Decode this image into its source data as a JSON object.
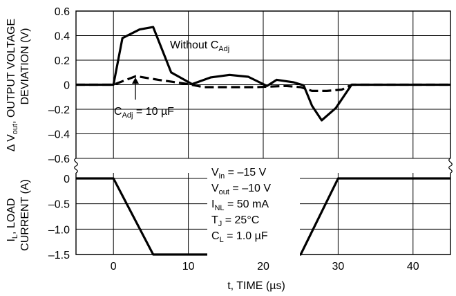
{
  "chart_data": {
    "type": "line",
    "x_axis": {
      "label": "t, TIME (µs)",
      "range": [
        -5,
        45
      ],
      "ticks": [
        0,
        10,
        20,
        30,
        40
      ],
      "tick_labels": [
        "0",
        "10",
        "20",
        "30",
        "40"
      ]
    },
    "top_panel": {
      "ylabel_line1": "Δ V",
      "ylabel_line1_sub": "out",
      "ylabel_line1_rest": ", OUTPUT VOLTAGE",
      "ylabel_line2": "DEVIATION (V)",
      "ylim": [
        -0.6,
        0.6
      ],
      "ticks": [
        0.6,
        0.4,
        0.2,
        0,
        -0.2,
        -0.4,
        -0.6
      ],
      "tick_labels": [
        "0.6",
        "0.4",
        "0.2",
        "0",
        "–0.2",
        "–0.4",
        "–0.6"
      ],
      "series": [
        {
          "name": "Without C_Adj",
          "style": "solid",
          "x": [
            -5,
            0,
            1.2,
            3.5,
            5.3,
            7.7,
            10.5,
            13,
            15.5,
            18,
            20.5,
            21.8,
            24,
            25.4,
            26.5,
            27.8,
            29.7,
            31.8,
            45
          ],
          "y": [
            0,
            0,
            0.38,
            0.45,
            0.47,
            0.1,
            0.005,
            0.06,
            0.08,
            0.065,
            -0.01,
            0.04,
            0.02,
            -0.005,
            -0.17,
            -0.29,
            -0.19,
            0,
            0
          ]
        },
        {
          "name": "C_Adj = 10 µF",
          "style": "dashed",
          "x": [
            -5,
            0,
            3,
            6,
            10,
            12,
            15,
            19,
            23,
            25,
            26.5,
            28.5,
            30.5,
            31.8,
            45
          ],
          "y": [
            0,
            0,
            0.07,
            0.04,
            0.005,
            -0.02,
            -0.02,
            -0.02,
            -0.01,
            -0.02,
            -0.05,
            -0.05,
            -0.04,
            0,
            0
          ]
        }
      ],
      "annotations": {
        "without_main": "Without C",
        "without_sub": "Adj",
        "with_main": "C",
        "with_sub": "Adj",
        "with_rest": " = 10 µF"
      }
    },
    "bottom_panel": {
      "ylabel_line1_main": "I",
      "ylabel_line1_sub": "L",
      "ylabel_line1_rest": ", LOAD",
      "ylabel_line2": "CURRENT (A)",
      "ylim": [
        -1.5,
        0
      ],
      "ticks": [
        0,
        -0.5,
        -1.0,
        -1.5
      ],
      "tick_labels": [
        "0",
        "–0.5",
        "–1.0",
        "–1.5"
      ],
      "series": [
        {
          "name": "Load current",
          "style": "solid",
          "x": [
            -5,
            0,
            5.3,
            25,
            30,
            45
          ],
          "y": [
            0,
            0,
            -1.5,
            -1.5,
            0,
            0
          ]
        }
      ],
      "conditions": [
        {
          "main": "V",
          "sub": "in",
          "rest": " = –15 V"
        },
        {
          "main": "V",
          "sub": "out",
          "rest": " = –10 V"
        },
        {
          "main": "I",
          "sub": "NL",
          "rest": " = 50 mA"
        },
        {
          "main": "T",
          "sub": "J",
          "rest": " = 25°C"
        },
        {
          "main": "C",
          "sub": "L",
          "rest": " = 1.0 µF"
        }
      ]
    }
  }
}
